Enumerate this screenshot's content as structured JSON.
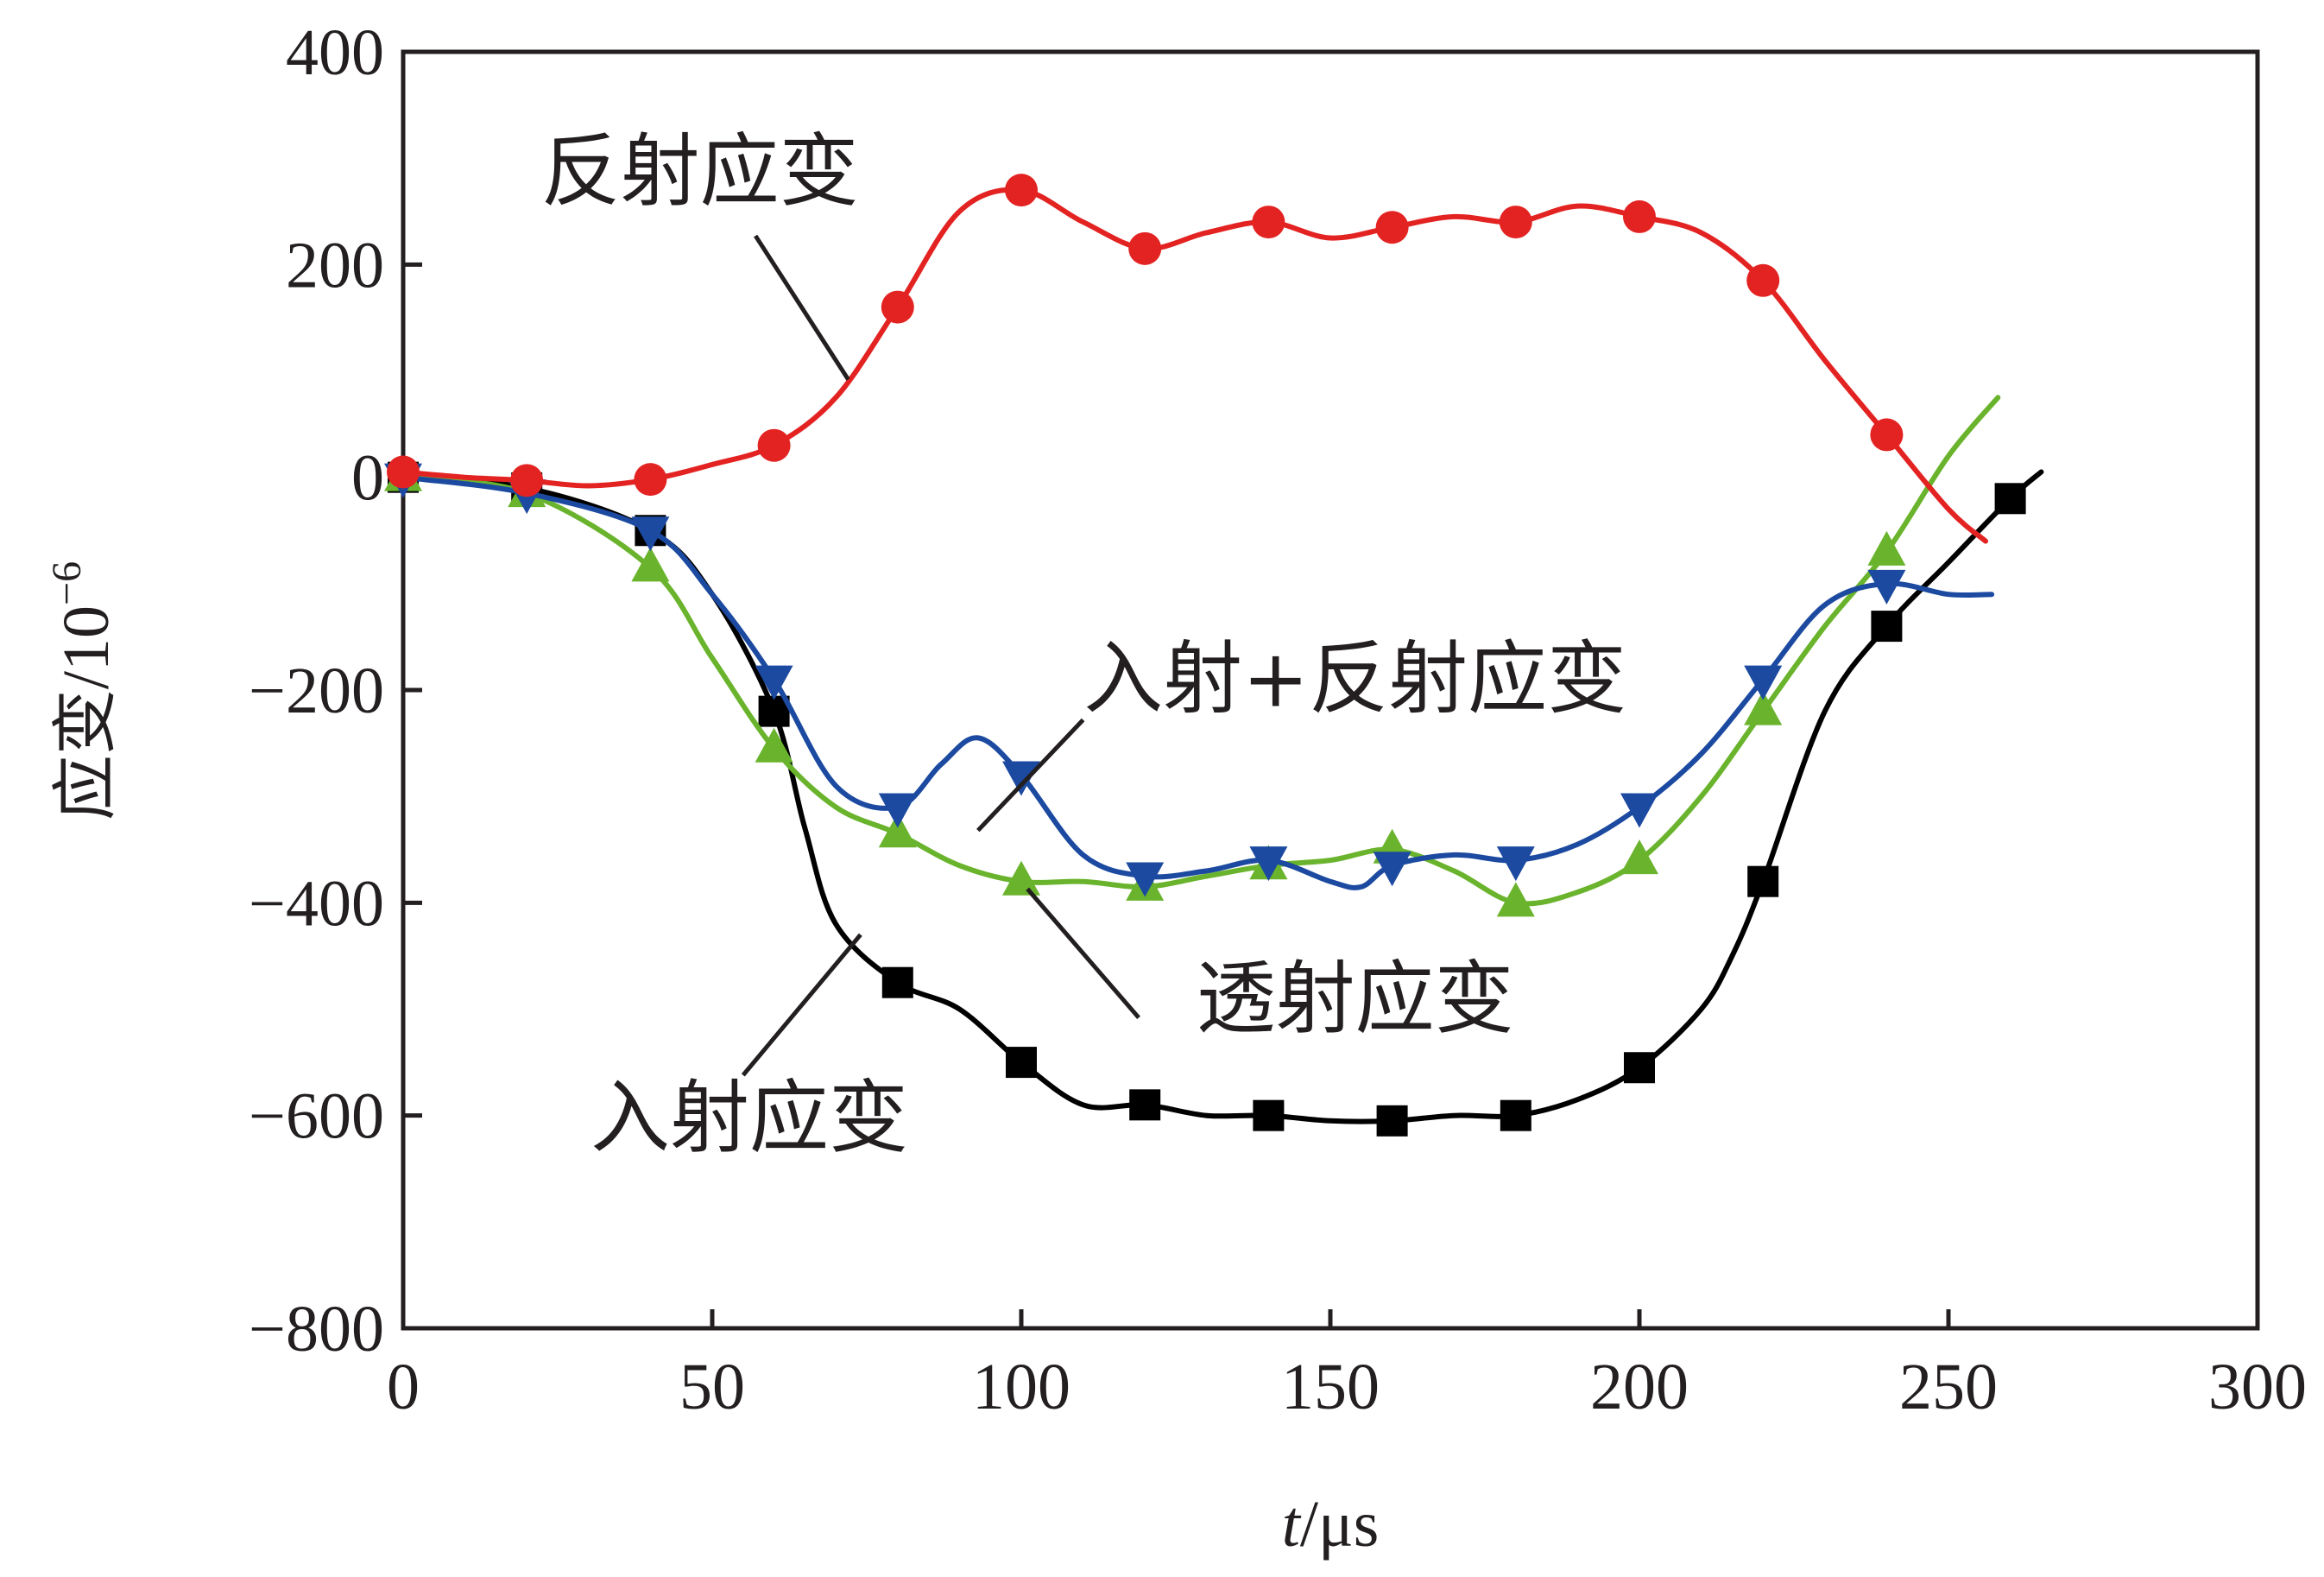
{
  "chart_data": {
    "type": "line",
    "xlabel_italic": "t",
    "xlabel_rest": "/μs",
    "ylabel_main": "应变/10",
    "ylabel_sup": "−6",
    "xlim": [
      0,
      300
    ],
    "ylim": [
      -800,
      400
    ],
    "x_ticks": [
      0,
      50,
      100,
      150,
      200,
      250,
      300
    ],
    "x_tick_labels": [
      "0",
      "50",
      "100",
      "150",
      "200",
      "250",
      "300"
    ],
    "y_ticks": [
      400,
      200,
      0,
      -200,
      -400,
      -600,
      -800
    ],
    "y_tick_labels": [
      "400",
      "200",
      "0",
      "−200",
      "−400",
      "−600",
      "−800"
    ],
    "grid": false,
    "series": [
      {
        "name": "反射应变",
        "color": "#e32322",
        "marker": "circle",
        "x": [
          0,
          10,
          20,
          30,
          40,
          50,
          60,
          70,
          80,
          90,
          100,
          110,
          120,
          130,
          140,
          150,
          160,
          170,
          180,
          190,
          200,
          210,
          220,
          230,
          240,
          250,
          256
        ],
        "y": [
          5,
          0,
          -3,
          -8,
          -2,
          12,
          30,
          75,
          160,
          250,
          270,
          240,
          215,
          230,
          240,
          225,
          235,
          245,
          240,
          255,
          245,
          230,
          185,
          110,
          40,
          -30,
          -60
        ],
        "marker_x": [
          0,
          20,
          40,
          60,
          80,
          100,
          120,
          140,
          160,
          180,
          200,
          220,
          240
        ]
      },
      {
        "name": "入射应变",
        "color": "#000000",
        "marker": "square",
        "x": [
          0,
          20,
          40,
          50,
          60,
          65,
          70,
          80,
          90,
          100,
          110,
          120,
          130,
          140,
          150,
          160,
          170,
          180,
          190,
          200,
          210,
          215,
          220,
          230,
          240,
          250,
          260,
          265
        ],
        "y": [
          0,
          -10,
          -50,
          -110,
          -220,
          -330,
          -420,
          -475,
          -500,
          -550,
          -590,
          -590,
          -600,
          -600,
          -605,
          -605,
          -600,
          -600,
          -585,
          -555,
          -500,
          -450,
          -380,
          -220,
          -140,
          -80,
          -20,
          5
        ],
        "marker_x": [
          0,
          20,
          40,
          60,
          80,
          100,
          120,
          140,
          160,
          180,
          200,
          220,
          240,
          260
        ]
      },
      {
        "name": "入射+反射应变",
        "color": "#1c4aa0",
        "marker": "triangle-down",
        "x": [
          0,
          20,
          40,
          50,
          60,
          70,
          80,
          87,
          93,
          100,
          110,
          120,
          130,
          140,
          150,
          155,
          160,
          170,
          180,
          190,
          200,
          210,
          220,
          230,
          240,
          250,
          257
        ],
        "y": [
          0,
          -15,
          -50,
          -110,
          -190,
          -290,
          -310,
          -270,
          -245,
          -280,
          -355,
          -375,
          -370,
          -360,
          -380,
          -385,
          -365,
          -355,
          -360,
          -345,
          -310,
          -260,
          -190,
          -120,
          -100,
          -110,
          -110
        ],
        "marker_x": [
          0,
          20,
          40,
          60,
          80,
          100,
          120,
          140,
          160,
          180,
          200,
          220,
          240
        ]
      },
      {
        "name": "透射应变",
        "color": "#6ab42d",
        "marker": "triangle-up",
        "x": [
          0,
          20,
          40,
          50,
          60,
          70,
          80,
          90,
          100,
          110,
          120,
          130,
          140,
          150,
          160,
          170,
          180,
          190,
          200,
          210,
          220,
          230,
          240,
          250,
          258
        ],
        "y": [
          0,
          -15,
          -85,
          -170,
          -255,
          -310,
          -335,
          -365,
          -380,
          -380,
          -385,
          -375,
          -365,
          -360,
          -350,
          -370,
          -400,
          -390,
          -360,
          -300,
          -220,
          -140,
          -70,
          20,
          75
        ],
        "marker_x": [
          0,
          20,
          40,
          60,
          80,
          100,
          120,
          140,
          160,
          180,
          200,
          220,
          240
        ]
      }
    ],
    "annotations": [
      {
        "text": "反射应变",
        "series": "反射应变"
      },
      {
        "text": "入射+反射应变",
        "series": "入射+反射应变"
      },
      {
        "text": "透射应变",
        "series": "透射应变"
      },
      {
        "text": "入射应变",
        "series": "入射应变"
      }
    ]
  }
}
